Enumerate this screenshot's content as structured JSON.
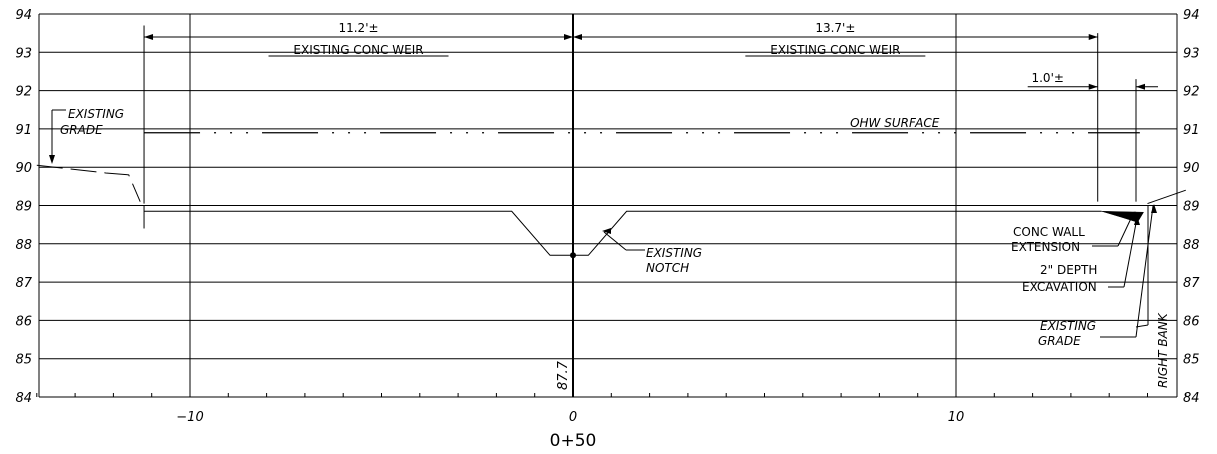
{
  "chart_data": {
    "type": "cross-section",
    "station_label": "0+50",
    "xlim": [
      -14,
      16
    ],
    "ylim": [
      84,
      94
    ],
    "x_ticks": [
      -10,
      0,
      10
    ],
    "x_tick_labels": [
      "−10",
      "0",
      "10"
    ],
    "y_ticks": [
      84,
      85,
      86,
      87,
      88,
      89,
      90,
      91,
      92,
      93,
      94
    ],
    "grid": true,
    "grid_x": [
      -10,
      0,
      10
    ],
    "profiles": {
      "existing_grade_left": [
        [
          -14,
          90.05
        ],
        [
          -12.2,
          89.85
        ],
        [
          -11.6,
          89.8
        ],
        [
          -11.3,
          89.1
        ]
      ],
      "weir_crest": [
        [
          -11.2,
          88.85
        ],
        [
          -1.6,
          88.85
        ],
        [
          -0.6,
          87.7
        ],
        [
          0.4,
          87.7
        ],
        [
          1.4,
          88.85
        ],
        [
          13.8,
          88.85
        ]
      ],
      "existing_grade_right": [
        [
          15.0,
          89.05
        ],
        [
          16,
          89.4
        ]
      ],
      "weir_left_wall": [
        [
          -11.2,
          88.4
        ],
        [
          -11.2,
          89.0
        ]
      ],
      "ohw_surface_y": 90.9,
      "ohw_surface_x": [
        -11.2,
        14.8
      ]
    },
    "notch_elevation": 87.7,
    "notch_label": "87.7",
    "dimensions": [
      {
        "label": "11.2'±",
        "from": -11.2,
        "to": 0,
        "y": 93.4,
        "sublabel": "EXISTING CONC WEIR"
      },
      {
        "label": "13.7'±",
        "from": 0,
        "to": 13.7,
        "y": 93.4,
        "sublabel": "EXISTING CONC WEIR"
      },
      {
        "label": "1.0'±",
        "from": 13.7,
        "to": 14.7,
        "y": 92.1
      }
    ],
    "annotations": {
      "existing_grade_left": [
        "EXISTING",
        "GRADE"
      ],
      "existing_notch": [
        "EXISTING",
        "NOTCH"
      ],
      "ohw_surface": "OHW SURFACE",
      "conc_wall_extension": [
        "CONC WALL",
        "EXTENSION"
      ],
      "depth_excavation": [
        "2\" DEPTH",
        "EXCAVATION"
      ],
      "existing_grade_right": [
        "EXISTING",
        "GRADE"
      ],
      "right_bank": "RIGHT BANK"
    }
  }
}
